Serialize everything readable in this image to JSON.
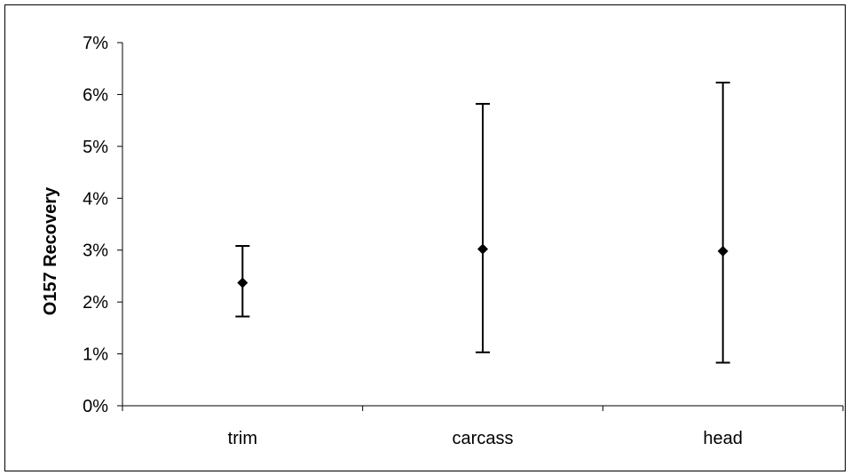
{
  "chart_data": {
    "type": "scatter",
    "title": "",
    "xlabel": "",
    "ylabel": "O157 Recovery",
    "categories": [
      "trim",
      "carcass",
      "head"
    ],
    "series": [
      {
        "values": [
          0.0237,
          0.0302,
          0.0298
        ],
        "error_low": [
          0.0172,
          0.0103,
          0.0083
        ],
        "error_high": [
          0.0308,
          0.0582,
          0.0623
        ],
        "marker": "diamond",
        "color": "#000000"
      }
    ],
    "ylim": [
      0,
      0.07
    ],
    "yticks": [
      0,
      0.01,
      0.02,
      0.03,
      0.04,
      0.05,
      0.06,
      0.07
    ],
    "ytick_labels": [
      "0%",
      "1%",
      "2%",
      "3%",
      "4%",
      "5%",
      "6%",
      "7%"
    ],
    "grid": false,
    "legend": "none"
  }
}
